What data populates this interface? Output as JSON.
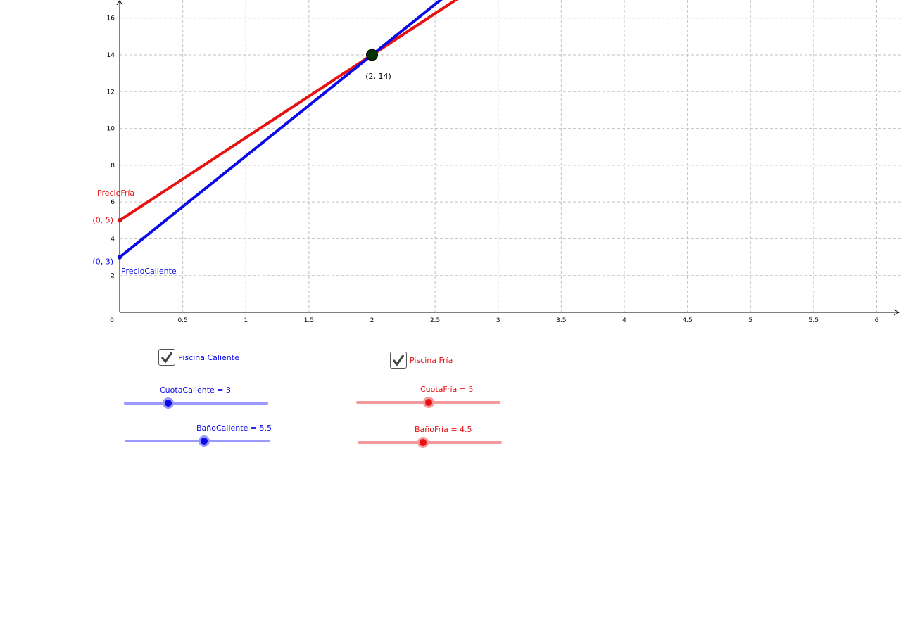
{
  "graph": {
    "x_ticks": [
      "0",
      "0.5",
      "1",
      "1.5",
      "2",
      "2.5",
      "3",
      "3.5",
      "4",
      "4.5",
      "5",
      "5.5",
      "6"
    ],
    "y_ticks": [
      "2",
      "4",
      "6",
      "8",
      "10",
      "12",
      "14",
      "16"
    ],
    "xlim": [
      0,
      6.2
    ],
    "ylim": [
      0,
      17
    ],
    "grid": true,
    "lines": [
      {
        "name": "PrecioFría",
        "label": "PrecioFría",
        "color": "#e81111",
        "intercept": 5,
        "slope": 4.5,
        "point_label": "(0, 5)"
      },
      {
        "name": "PrecioCaliente",
        "label": "PrecioCaliente",
        "color": "#0a0ae6",
        "intercept": 3,
        "slope": 5.5,
        "point_label": "(0, 3)"
      }
    ],
    "intersection": {
      "x": 2,
      "y": 14,
      "label": "(2, 14)",
      "color": "#003300"
    }
  },
  "controls": {
    "caliente": {
      "checkbox_label": "Piscina Caliente",
      "checked": true,
      "color": "#0a0ae6",
      "track_color": "#9999ff",
      "cuota": {
        "label": "CuotaCaliente = 3",
        "value": 3,
        "min": 0,
        "max": 10
      },
      "bano": {
        "label": "BañoCaliente = 5.5",
        "value": 5.5,
        "min": 0,
        "max": 10
      }
    },
    "fria": {
      "checkbox_label": "Piscina Fría",
      "checked": true,
      "color": "#e81111",
      "track_color": "#f39999",
      "cuota": {
        "label": "CuotaFría = 5",
        "value": 5,
        "min": 0,
        "max": 10
      },
      "bano": {
        "label": "BañoFría = 4.5",
        "value": 4.5,
        "min": 0,
        "max": 10
      }
    }
  }
}
